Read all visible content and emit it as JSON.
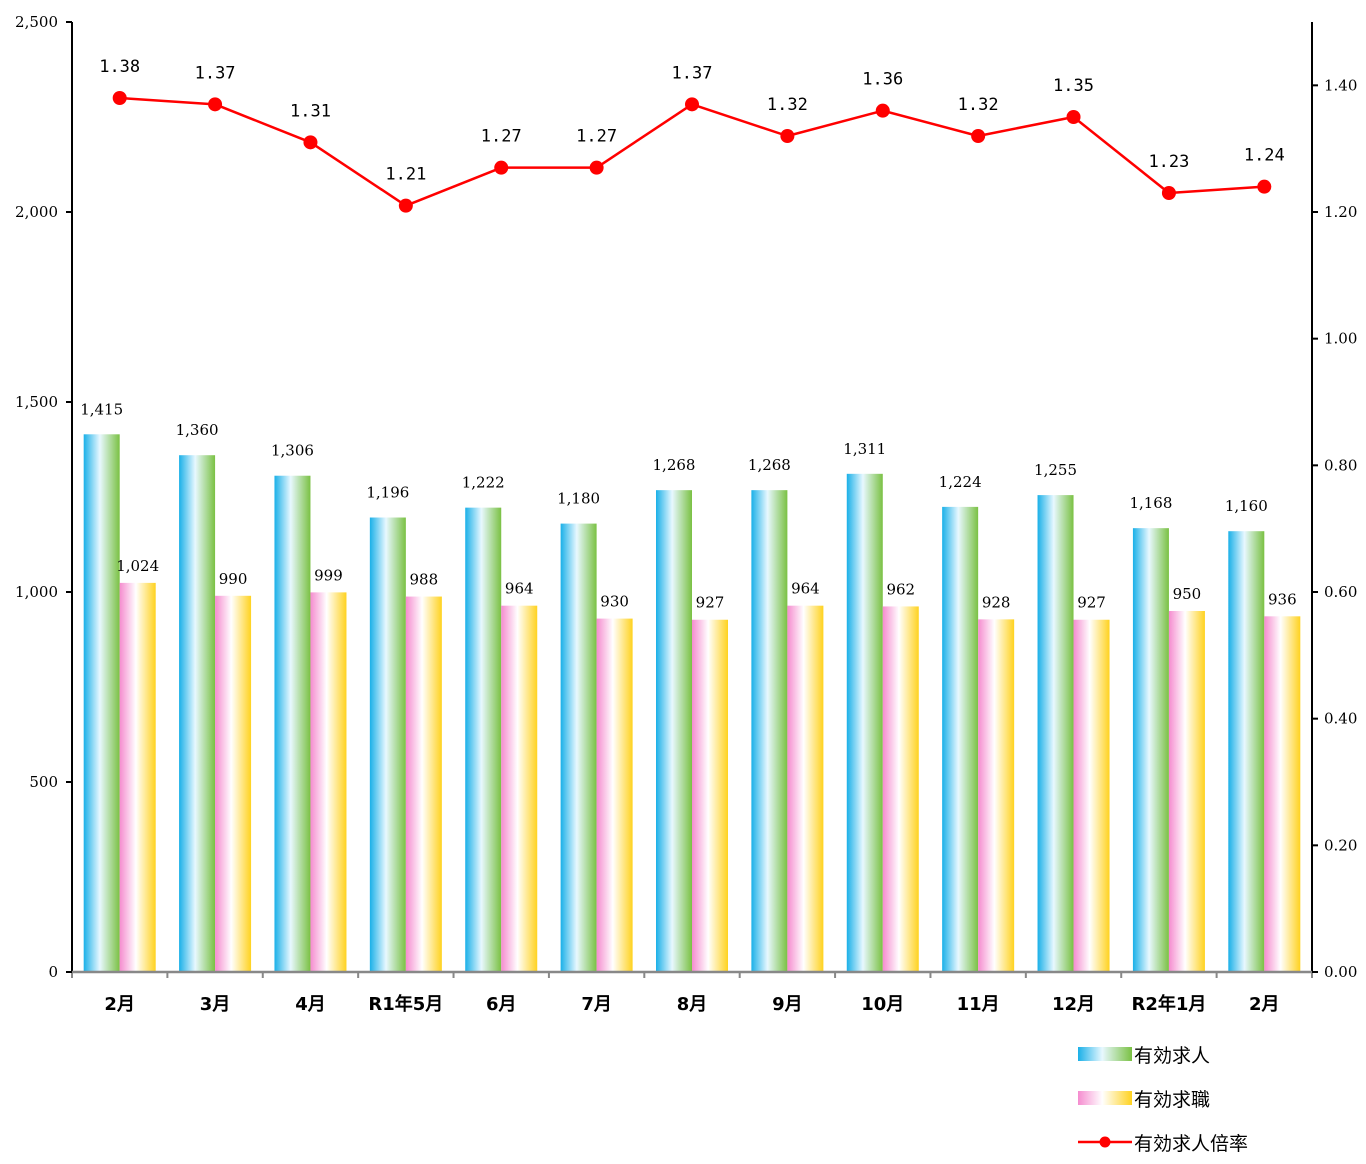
{
  "chart_data": {
    "type": "bar",
    "categories": [
      "2月",
      "3月",
      "4月",
      "R1年5月",
      "6月",
      "7月",
      "8月",
      "9月",
      "10月",
      "11月",
      "12月",
      "R2年1月",
      "2月"
    ],
    "series": [
      {
        "name": "有効求人",
        "type": "bar",
        "axis": "left",
        "values": [
          1415,
          1360,
          1306,
          1196,
          1222,
          1180,
          1268,
          1268,
          1311,
          1224,
          1255,
          1168,
          1160
        ],
        "labels": [
          "1,415",
          "1,360",
          "1,306",
          "1,196",
          "1,222",
          "1,180",
          "1,268",
          "1,268",
          "1,311",
          "1,224",
          "1,255",
          "1,168",
          "1,160"
        ]
      },
      {
        "name": "有効求職",
        "type": "bar",
        "axis": "left",
        "values": [
          1024,
          990,
          999,
          988,
          964,
          930,
          927,
          964,
          962,
          928,
          927,
          950,
          936
        ],
        "labels": [
          "1,024",
          "990",
          "999",
          "988",
          "964",
          "930",
          "927",
          "964",
          "962",
          "928",
          "927",
          "950",
          "936"
        ]
      },
      {
        "name": "有効求人倍率",
        "type": "line",
        "axis": "right",
        "values": [
          1.38,
          1.37,
          1.31,
          1.21,
          1.27,
          1.27,
          1.37,
          1.32,
          1.36,
          1.32,
          1.35,
          1.23,
          1.24
        ],
        "labels": [
          "1.38",
          "1.37",
          "1.31",
          "1.21",
          "1.27",
          "1.27",
          "1.37",
          "1.32",
          "1.36",
          "1.32",
          "1.35",
          "1.23",
          "1.24"
        ]
      }
    ],
    "y_left": {
      "min": 0,
      "max": 2500,
      "ticks": [
        0,
        500,
        1000,
        1500,
        2000,
        2500
      ],
      "tick_labels": [
        "0",
        "500",
        "1,000",
        "1,500",
        "2,000",
        "2,500"
      ]
    },
    "y_right": {
      "min": 0,
      "max": 1.5,
      "ticks": [
        0,
        0.2,
        0.4,
        0.6,
        0.8,
        1.0,
        1.2,
        1.4
      ],
      "tick_labels": [
        "0.00",
        "0.20",
        "0.40",
        "0.60",
        "0.80",
        "1.00",
        "1.20",
        "1.40"
      ]
    },
    "grid": false,
    "legend_position": "bottom-right",
    "colors": {
      "jobs_bar": [
        "#1ab0e8",
        "#e8f8ff",
        "#7ac143"
      ],
      "seekers_bar": [
        "#f58ccf",
        "#ffffff",
        "#ffd21f"
      ],
      "ratio_line": "#ff0000"
    }
  }
}
